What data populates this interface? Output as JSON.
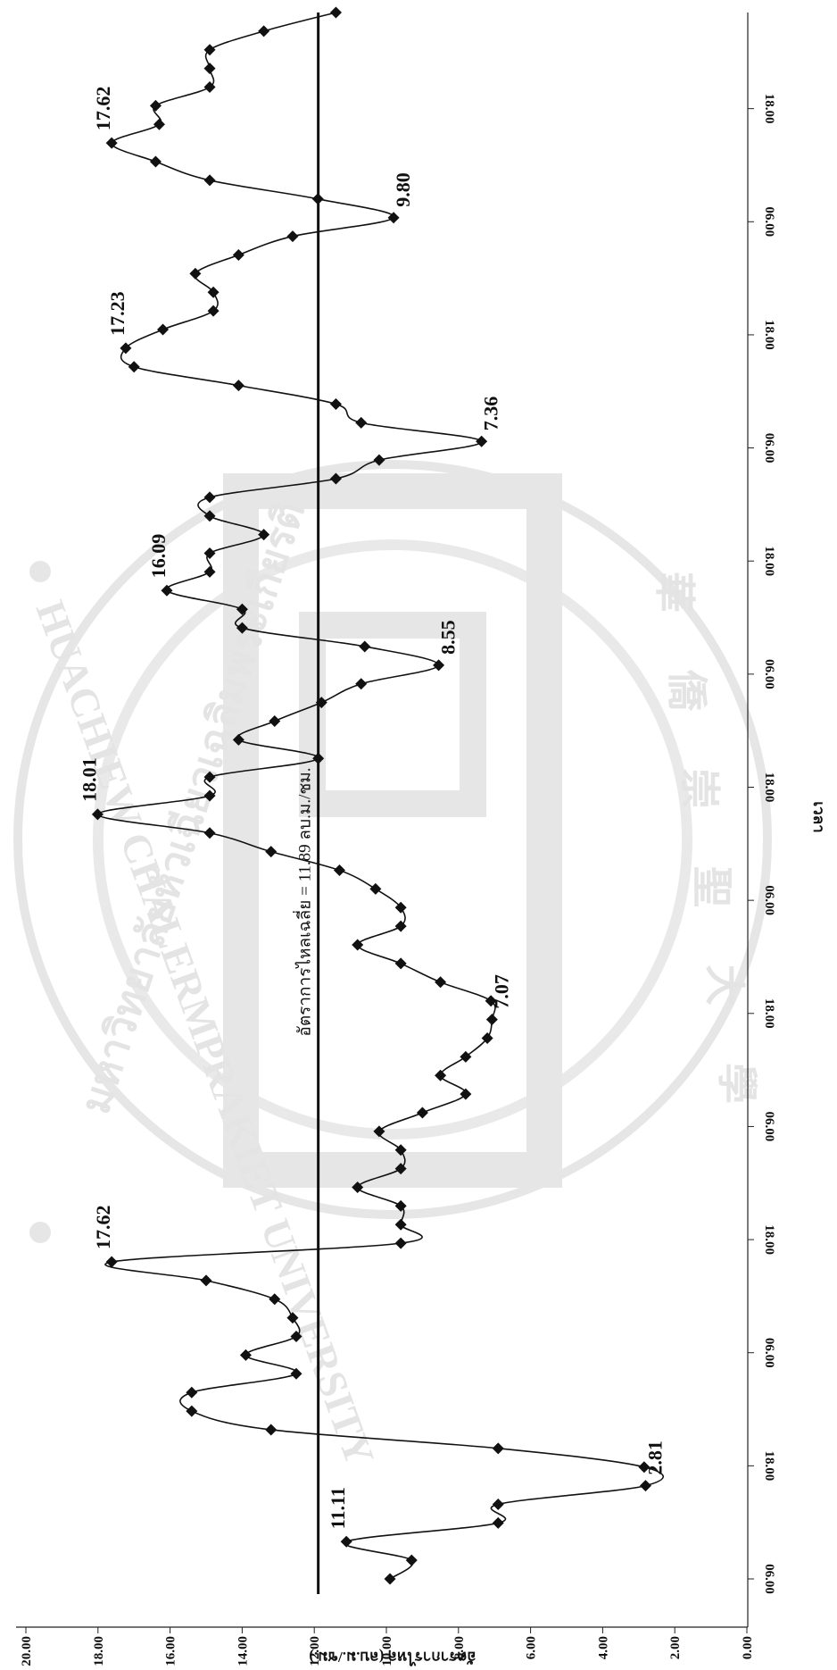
{
  "chart_data": {
    "type": "line",
    "ylabel": "อัตราการไหล (ลบ.ม./ชม.)",
    "xlabel": "เวลา",
    "ylim": [
      0,
      20
    ],
    "y_ticks": [
      "0.00",
      "2.00",
      "4.00",
      "6.00",
      "8.00",
      "10.00",
      "12.00",
      "14.00",
      "16.00",
      "18.00",
      "20.00"
    ],
    "x_ticks": [
      "06.00",
      "18.00",
      "06.00",
      "18.00",
      "06.00",
      "18.00",
      "06.00",
      "18.00",
      "06.00",
      "18.00",
      "06.00",
      "18.00",
      "06.00",
      "18.00"
    ],
    "average": {
      "value": 11.89,
      "label": "อัตราการไหลเฉลี่ย = 11.89 ลบ.ม./ชม."
    },
    "series": [
      {
        "values": [
          9.9,
          9.3,
          11.11,
          6.9,
          6.9,
          2.81,
          2.85,
          6.9,
          13.2,
          15.4,
          15.4,
          12.5,
          13.9,
          12.5,
          12.6,
          13.1,
          15.0,
          17.62,
          9.6,
          9.6,
          9.6,
          10.8,
          9.6,
          9.6,
          10.2,
          9.0,
          7.8,
          8.5,
          7.8,
          7.2,
          7.07,
          7.1,
          8.5,
          9.6,
          10.8,
          9.6,
          9.6,
          10.3,
          11.3,
          13.2,
          14.9,
          18.01,
          14.9,
          14.9,
          11.89,
          14.1,
          13.1,
          11.8,
          10.7,
          8.55,
          10.6,
          14.0,
          14.0,
          16.09,
          14.9,
          14.9,
          13.4,
          14.9,
          14.9,
          11.4,
          10.2,
          7.36,
          10.7,
          11.4,
          14.1,
          17.0,
          17.23,
          16.2,
          14.8,
          14.8,
          15.3,
          14.1,
          12.6,
          9.8,
          11.9,
          14.9,
          16.4,
          17.62,
          16.3,
          16.4,
          14.9,
          14.9,
          14.9,
          13.4,
          11.4
        ],
        "labeled_points": [
          {
            "index": 2,
            "label": "11.11"
          },
          {
            "index": 5,
            "label": "2.81"
          },
          {
            "index": 17,
            "label": "17.62"
          },
          {
            "index": 30,
            "label": "7.07"
          },
          {
            "index": 41,
            "label": "18.01"
          },
          {
            "index": 49,
            "label": "8.55"
          },
          {
            "index": 53,
            "label": "16.09"
          },
          {
            "index": 61,
            "label": "7.36"
          },
          {
            "index": 66,
            "label": "17.23"
          },
          {
            "index": 73,
            "label": "9.80"
          },
          {
            "index": 77,
            "label": "17.62"
          }
        ]
      }
    ],
    "grid": false,
    "legend": "none"
  },
  "watermark": {
    "text_top": "มหาวิทยาลัยหัวเฉียวเฉลิมพระเกียรติ",
    "text_bottom": "HUACHIEW CHALERMPRAKIET UNIVERSITY",
    "chars": [
      "華",
      "僑",
      "崇",
      "聖",
      "大",
      "學"
    ]
  }
}
